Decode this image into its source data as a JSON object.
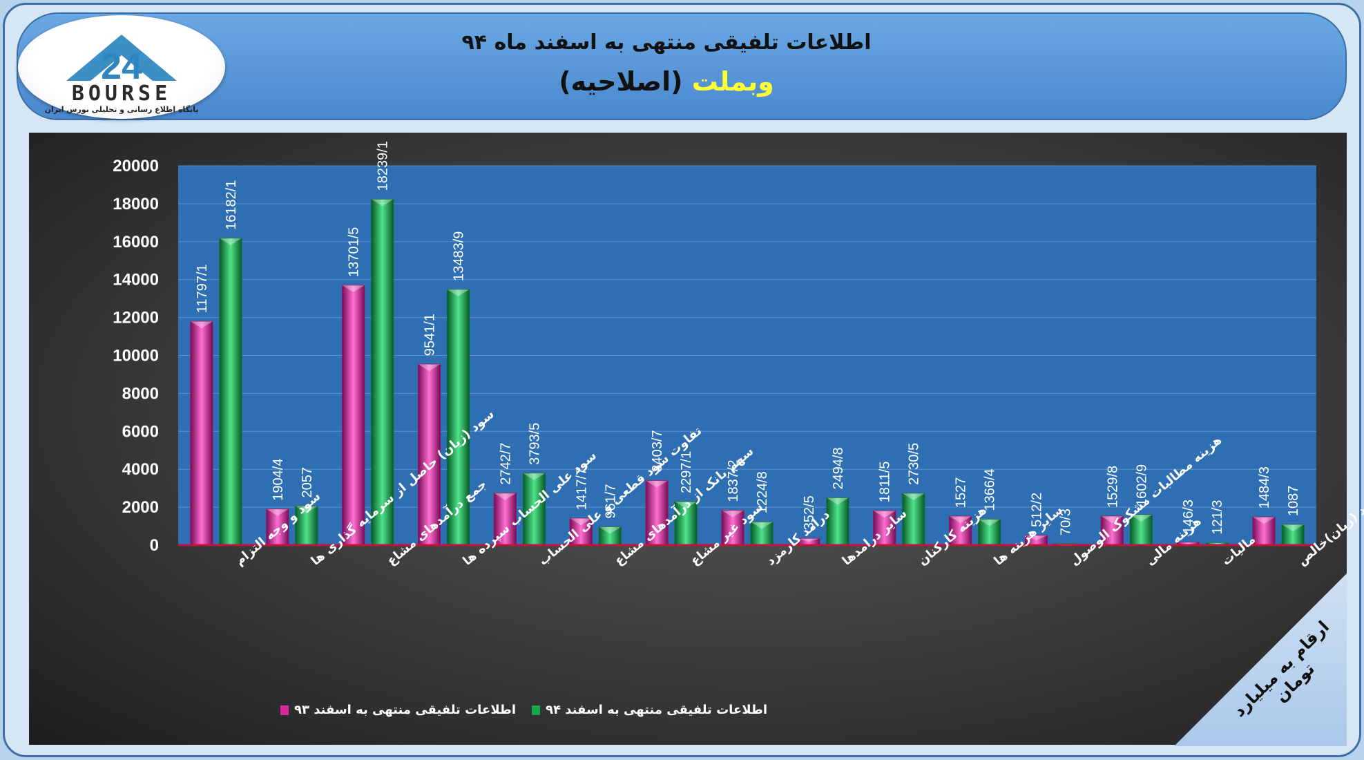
{
  "header": {
    "title_line1": "اطلاعات تلفیقی منتهی به اسفند ماه ۹۴",
    "symbol": "وبملت",
    "symbol_note": "(اصلاحیه)"
  },
  "logo": {
    "word": "BOURSE",
    "number": "24",
    "subtitle": "پایگاه اطلاع رسانی و تحلیلی بورس ایران"
  },
  "unit_note": "ارقام به میلیارد تومان",
  "colors": {
    "series93": "#d6289b",
    "series94": "#13a64b",
    "plot_bg": "#2e6fb4",
    "baseline": "#c0143c"
  },
  "chart_data": {
    "type": "bar",
    "ylim": [
      0,
      20000
    ],
    "yticks": [
      "0",
      "2000",
      "4000",
      "6000",
      "8000",
      "10000",
      "12000",
      "14000",
      "16000",
      "18000",
      "20000"
    ],
    "grid": true,
    "legend_position": "bottom",
    "categories": [
      "سود و وجه التزام",
      "سود (زیان) حاصل از سرمایه گذاری ها",
      "جمع درآمدهای مشاع",
      "سود علی الحساب سپرده ها",
      "تفاوت سود قطعی و علی الحساب",
      "سهم بانک از درآمدهای مشاع",
      "سود غیر مشاع",
      "درامد کارمزد",
      "سایر درامدها",
      "هزینه کارکنان",
      "سایر هزینه ها",
      "هزینه مطالبات مشکوک الوصول",
      "هزینه مالی",
      "مالیات",
      "سود (زیان)خالص"
    ],
    "series": [
      {
        "name": "اطلاعات تلفیقی منتهی به اسفند ۹۳",
        "values": [
          11797.1,
          1904.4,
          13701.5,
          9541.1,
          2742.7,
          1417.7,
          3403.7,
          1837.2,
          352.5,
          1811.5,
          1527,
          512.2,
          1529.8,
          146.3,
          1484.3
        ],
        "labels": [
          "11797/1",
          "1904/4",
          "13701/5",
          "9541/1",
          "2742/7",
          "1417/7",
          "3403/7",
          "1837/2",
          "352/5",
          "1811/5",
          "1527",
          "512/2",
          "1529/8",
          "146/3",
          "1484/3"
        ]
      },
      {
        "name": "اطلاعات تلفیقی منتهی به اسفند ۹۴",
        "values": [
          16182.1,
          2057,
          18239.1,
          13483.9,
          3793.5,
          961.7,
          2297.1,
          1224.8,
          2494.8,
          2730.5,
          1366.4,
          70.3,
          1602.9,
          121.3,
          1087
        ],
        "labels": [
          "16182/1",
          "2057",
          "18239/1",
          "13483/9",
          "3793/5",
          "961/7",
          "2297/1",
          "1224/8",
          "2494/8",
          "2730/5",
          "1366/4",
          "70/3",
          "1602/9",
          "121/3",
          "1087"
        ]
      }
    ]
  }
}
